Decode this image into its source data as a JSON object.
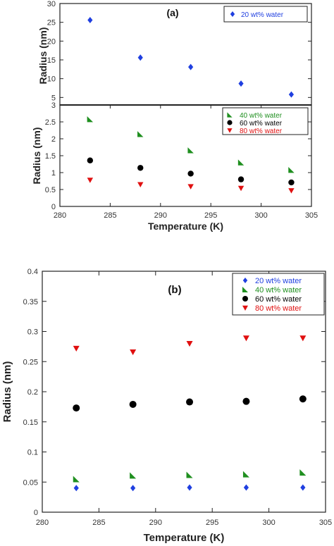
{
  "colors": {
    "20 wt% water": "#1f3fe0",
    "40 wt% water": "#1f8f1f",
    "60 wt% water": "#000000",
    "80 wt% water": "#e01010"
  },
  "chart_data": [
    {
      "panel": "(a)",
      "type": "scatter",
      "title": "",
      "panel_label": "(a)",
      "xlabel": "Temperature (K)",
      "ylabel_top": "Radius (nm)",
      "ylabel_bottom": "Radius (nm)",
      "xlim": [
        280,
        305
      ],
      "x_ticks": [
        "280",
        "285",
        "290",
        "295",
        "300",
        "305"
      ],
      "top": {
        "ylim": [
          3,
          30
        ],
        "y_ticks": [
          "3",
          "5",
          "10",
          "15",
          "20",
          "25",
          "30"
        ],
        "legend_position": "top-right",
        "series": [
          {
            "name": "20 wt% water",
            "marker": "diamond",
            "color": "#1f3fe0",
            "x": [
              283,
              288,
              293,
              298,
              303
            ],
            "y": [
              25.6,
              15.6,
              13.1,
              8.7,
              5.8
            ]
          }
        ]
      },
      "bottom": {
        "ylim": [
          0,
          3
        ],
        "y_ticks": [
          "0",
          "0.5",
          "1",
          "1.5",
          "2",
          "2.5"
        ],
        "legend_position": "top-right",
        "series": [
          {
            "name": "40 wt% water",
            "marker": "triangle",
            "color": "#1f8f1f",
            "x": [
              283,
              288,
              293,
              298,
              303
            ],
            "y": [
              2.58,
              2.14,
              1.66,
              1.3,
              1.08
            ]
          },
          {
            "name": "60 wt% water",
            "marker": "circle",
            "color": "#000000",
            "x": [
              283,
              288,
              293,
              298,
              303
            ],
            "y": [
              1.36,
              1.14,
              0.97,
              0.8,
              0.71
            ]
          },
          {
            "name": "80 wt% water",
            "marker": "down-triangle",
            "color": "#e01010",
            "x": [
              283,
              288,
              293,
              298,
              303
            ],
            "y": [
              0.78,
              0.65,
              0.59,
              0.54,
              0.47
            ]
          }
        ]
      }
    },
    {
      "panel": "(b)",
      "type": "scatter",
      "title": "",
      "panel_label": "(b)",
      "xlabel": "Temperature (K)",
      "ylabel": "Radius (nm)",
      "xlim": [
        280,
        305
      ],
      "ylim": [
        0,
        0.4
      ],
      "x_ticks": [
        "280",
        "285",
        "290",
        "295",
        "300",
        "305"
      ],
      "y_ticks": [
        "0",
        "0.05",
        "0.1",
        "0.15",
        "0.2",
        "0.25",
        "0.3",
        "0.35",
        "0.4"
      ],
      "legend_position": "top-right",
      "series": [
        {
          "name": "20 wt% water",
          "marker": "diamond",
          "color": "#1f3fe0",
          "x": [
            283,
            288,
            293,
            298,
            303
          ],
          "y": [
            0.04,
            0.04,
            0.041,
            0.041,
            0.041
          ]
        },
        {
          "name": "40 wt% water",
          "marker": "triangle",
          "color": "#1f8f1f",
          "x": [
            283,
            288,
            293,
            298,
            303
          ],
          "y": [
            0.055,
            0.061,
            0.062,
            0.063,
            0.066
          ]
        },
        {
          "name": "60 wt% water",
          "marker": "circle",
          "color": "#000000",
          "x": [
            283,
            288,
            293,
            298,
            303
          ],
          "y": [
            0.173,
            0.179,
            0.183,
            0.184,
            0.188
          ]
        },
        {
          "name": "80 wt% water",
          "marker": "down-triangle",
          "color": "#e01010",
          "x": [
            283,
            288,
            293,
            298,
            303
          ],
          "y": [
            0.272,
            0.266,
            0.28,
            0.289,
            0.289
          ]
        }
      ]
    }
  ]
}
